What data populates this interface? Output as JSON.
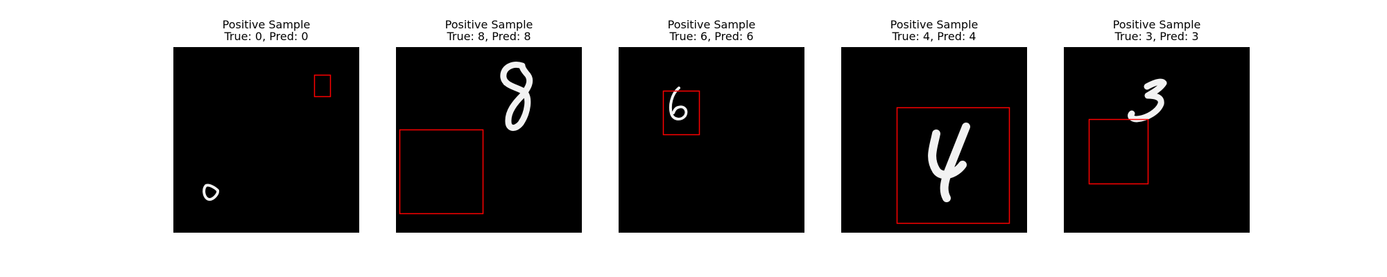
{
  "figure": {
    "background": "#ffffff",
    "image_background": "#000000",
    "digit_color": "#f2f2f2",
    "box_color": "#ff0000"
  },
  "panels": [
    {
      "title": "Positive Sample",
      "subtitle": "True: 0, Pred: 0",
      "digit": "0"
    },
    {
      "title": "Positive Sample",
      "subtitle": "True: 8, Pred: 8",
      "digit": "8"
    },
    {
      "title": "Positive Sample",
      "subtitle": "True: 6, Pred: 6",
      "digit": "6"
    },
    {
      "title": "Positive Sample",
      "subtitle": "True: 4, Pred: 4",
      "digit": "4"
    },
    {
      "title": "Positive Sample",
      "subtitle": "True: 3, Pred: 3",
      "digit": "3"
    }
  ]
}
